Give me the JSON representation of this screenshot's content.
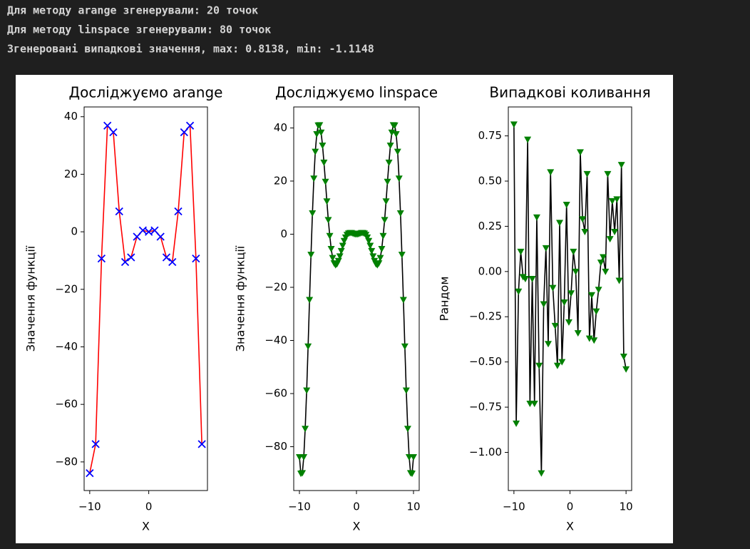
{
  "console": {
    "lines": [
      "Для методу arange згенерували: 20 точок",
      "Для методу linspace згенерували: 80 точок",
      "Згенеровані випадкові значення, max: 0.8138, min: -1.1148"
    ]
  },
  "chart_data": [
    {
      "type": "line",
      "title": "Досліджуємо arange",
      "xlabel": "X",
      "ylabel": "Значення функції",
      "x": [
        -10,
        -9,
        -8,
        -7,
        -6,
        -5,
        -4,
        -3,
        -2,
        -1,
        0,
        1,
        2,
        3,
        4,
        5,
        6,
        7,
        8,
        9
      ],
      "values": [
        -83.9,
        -73.8,
        -9.3,
        36.9,
        34.6,
        7.1,
        -10.5,
        -8.9,
        -1.7,
        0.5,
        0,
        0.5,
        -1.7,
        -8.9,
        -10.5,
        7.1,
        34.6,
        36.9,
        -9.3,
        -73.8
      ],
      "line_color": "#ff0000",
      "marker": "x",
      "marker_color": "#0000ff",
      "xlim": [
        -10.95,
        9.95
      ],
      "xticks": [
        {
          "value": -10,
          "label": "−10"
        },
        0
      ],
      "ylim": [
        -89.95,
        43.4
      ],
      "yticks": [
        40,
        20,
        0,
        {
          "value": -20,
          "label": "−20"
        },
        {
          "value": -40,
          "label": "−40"
        },
        {
          "value": -60,
          "label": "−60"
        },
        {
          "value": -80,
          "label": "−80"
        }
      ]
    },
    {
      "type": "line",
      "title": "Досліджуємо linspace",
      "xlabel": "X",
      "ylabel": "Значення функції",
      "x": [
        -10,
        -9.75,
        -9.49,
        -9.24,
        -8.99,
        -8.73,
        -8.48,
        -8.23,
        -7.97,
        -7.72,
        -7.47,
        -7.22,
        -6.96,
        -6.71,
        -6.46,
        -6.2,
        -5.95,
        -5.7,
        -5.44,
        -5.19,
        -4.94,
        -4.68,
        -4.43,
        -4.18,
        -3.92,
        -3.67,
        -3.42,
        -3.16,
        -2.91,
        -2.66,
        -2.41,
        -2.15,
        -1.9,
        -1.65,
        -1.39,
        -1.14,
        -0.89,
        -0.63,
        -0.38,
        -0.13,
        0.13,
        0.38,
        0.63,
        0.89,
        1.14,
        1.39,
        1.65,
        1.9,
        2.15,
        2.41,
        2.66,
        2.91,
        3.16,
        3.42,
        3.67,
        3.92,
        4.18,
        4.43,
        4.68,
        4.94,
        5.19,
        5.44,
        5.7,
        5.95,
        6.2,
        6.46,
        6.71,
        6.96,
        7.22,
        7.47,
        7.72,
        7.97,
        8.23,
        8.48,
        8.73,
        8.99,
        9.24,
        9.49,
        9.75,
        10
      ],
      "values": [
        -83.9,
        -90.1,
        -89.9,
        -83.9,
        -73.2,
        -58.8,
        -42.2,
        -24.7,
        -7.7,
        7.9,
        21.0,
        31.1,
        37.7,
        41.0,
        41.1,
        38.3,
        33.4,
        27.0,
        19.8,
        12.4,
        5.4,
        -0.6,
        -5.5,
        -8.9,
        -10.9,
        -11.6,
        -11.2,
        -10.0,
        -8.3,
        -6.3,
        -4.3,
        -2.5,
        -1.2,
        -0.2,
        0.3,
        0.5,
        0.5,
        0.3,
        0.1,
        0.0,
        0.0,
        0.1,
        0.3,
        0.5,
        0.5,
        0.3,
        -0.2,
        -1.2,
        -2.5,
        -4.3,
        -6.3,
        -8.3,
        -10.0,
        -11.2,
        -11.6,
        -10.9,
        -8.9,
        -5.5,
        -0.6,
        5.4,
        12.4,
        19.8,
        27.0,
        33.4,
        38.3,
        41.1,
        41.0,
        37.7,
        31.1,
        21.0,
        7.9,
        -7.7,
        -24.7,
        -42.2,
        -58.8,
        -73.2,
        -83.9,
        -89.9,
        -90.1,
        -83.9
      ],
      "line_color": "#000000",
      "marker": "v",
      "marker_color": "#008000",
      "xlim": [
        -11,
        11
      ],
      "xticks": [
        {
          "value": -10,
          "label": "−10"
        },
        0,
        10
      ],
      "ylim": [
        -96.5,
        47.9
      ],
      "yticks": [
        40,
        20,
        0,
        {
          "value": -20,
          "label": "−20"
        },
        {
          "value": -40,
          "label": "−40"
        },
        {
          "value": -60,
          "label": "−60"
        },
        {
          "value": -80,
          "label": "−80"
        }
      ]
    },
    {
      "type": "line",
      "title": "Випадкові коливання",
      "xlabel": "X",
      "ylabel": "Рандом",
      "x": [
        -10,
        -9.59,
        -9.18,
        -8.78,
        -8.37,
        -7.96,
        -7.55,
        -7.14,
        -6.73,
        -6.33,
        -5.92,
        -5.51,
        -5.1,
        -4.69,
        -4.29,
        -3.88,
        -3.47,
        -3.06,
        -2.65,
        -2.24,
        -1.84,
        -1.43,
        -1.02,
        -0.61,
        -0.2,
        0.2,
        0.61,
        1.02,
        1.43,
        1.84,
        2.24,
        2.65,
        3.06,
        3.47,
        3.88,
        4.29,
        4.69,
        5.1,
        5.51,
        5.92,
        6.33,
        6.73,
        7.14,
        7.55,
        7.96,
        8.37,
        8.78,
        9.18,
        9.59,
        10
      ],
      "values": [
        0.8138,
        -0.84,
        -0.11,
        0.11,
        -0.03,
        -0.04,
        0.73,
        -0.73,
        -0.04,
        -0.73,
        0.3,
        -0.52,
        -1.1148,
        -0.18,
        0.13,
        -0.4,
        0.55,
        -0.09,
        -0.3,
        -0.52,
        0.27,
        -0.5,
        -0.17,
        0.37,
        -0.28,
        -0.12,
        0.11,
        0.0,
        -0.34,
        0.66,
        0.29,
        0.22,
        0.54,
        -0.37,
        -0.13,
        -0.38,
        -0.22,
        -0.1,
        0.05,
        0.08,
        0.0,
        0.54,
        0.18,
        0.39,
        0.22,
        0.4,
        -0.05,
        0.59,
        -0.47,
        -0.54
      ],
      "line_color": "#000000",
      "marker": "v",
      "marker_color": "#008000",
      "xlim": [
        -11,
        11
      ],
      "xticks": [
        {
          "value": -10,
          "label": "−10"
        },
        0,
        10
      ],
      "ylim": [
        -1.211,
        0.91
      ],
      "yticks": [
        0.75,
        {
          "value": 0.5,
          "label": "0.50"
        },
        0.25,
        {
          "value": 0,
          "label": "0.00"
        },
        {
          "value": -0.25,
          "label": "−0.25"
        },
        {
          "value": -0.5,
          "label": "−0.50"
        },
        {
          "value": -0.75,
          "label": "−0.75"
        },
        {
          "value": -1,
          "label": "−1.00"
        }
      ]
    }
  ]
}
